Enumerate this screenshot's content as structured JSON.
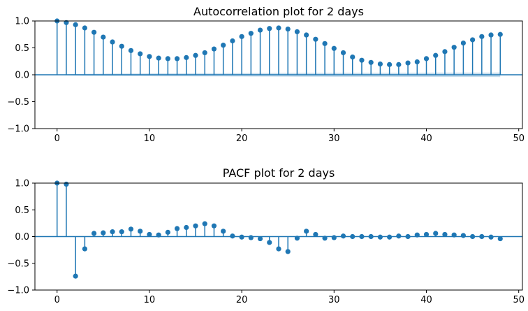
{
  "chart_data": [
    {
      "type": "stem",
      "title": "Autocorrelation plot for 2 days",
      "xlabel": "",
      "ylabel": "",
      "xlim": [
        -2.4,
        50.4
      ],
      "ylim": [
        -1.0,
        1.0
      ],
      "xticks": [
        0,
        10,
        20,
        30,
        40,
        50
      ],
      "yticks": [
        -1.0,
        -0.5,
        0.0,
        0.5,
        1.0
      ],
      "xtick_labels": [
        "0",
        "10",
        "20",
        "30",
        "40",
        "50"
      ],
      "ytick_labels": [
        "−1.0",
        "−0.5",
        "0.0",
        "0.5",
        "1.0"
      ],
      "grid": false,
      "color": "#1f77b4",
      "confidence_band": {
        "color": "#1f77b4",
        "lower": [
          0.0,
          -0.01,
          -0.015,
          -0.018,
          -0.02,
          -0.021,
          -0.022,
          -0.023,
          -0.024,
          -0.025,
          -0.026,
          -0.027,
          -0.027,
          -0.028,
          -0.028,
          -0.029,
          -0.029,
          -0.03,
          -0.03,
          -0.031,
          -0.031,
          -0.032,
          -0.032,
          -0.033,
          -0.034,
          -0.034,
          -0.035,
          -0.035,
          -0.036,
          -0.036,
          -0.037,
          -0.037,
          -0.037,
          -0.038,
          -0.038,
          -0.038,
          -0.038,
          -0.039,
          -0.039,
          -0.039,
          -0.039,
          -0.04,
          -0.04,
          -0.04,
          -0.04,
          -0.041,
          -0.041,
          -0.041,
          -0.042
        ],
        "upper": [
          0.0,
          0.01,
          0.015,
          0.018,
          0.02,
          0.021,
          0.022,
          0.023,
          0.024,
          0.025,
          0.026,
          0.027,
          0.027,
          0.028,
          0.028,
          0.029,
          0.029,
          0.03,
          0.03,
          0.031,
          0.031,
          0.032,
          0.032,
          0.033,
          0.034,
          0.034,
          0.035,
          0.035,
          0.036,
          0.036,
          0.037,
          0.037,
          0.037,
          0.038,
          0.038,
          0.038,
          0.038,
          0.039,
          0.039,
          0.039,
          0.039,
          0.04,
          0.04,
          0.04,
          0.04,
          0.041,
          0.041,
          0.041,
          0.042
        ]
      },
      "x": [
        0,
        1,
        2,
        3,
        4,
        5,
        6,
        7,
        8,
        9,
        10,
        11,
        12,
        13,
        14,
        15,
        16,
        17,
        18,
        19,
        20,
        21,
        22,
        23,
        24,
        25,
        26,
        27,
        28,
        29,
        30,
        31,
        32,
        33,
        34,
        35,
        36,
        37,
        38,
        39,
        40,
        41,
        42,
        43,
        44,
        45,
        46,
        47,
        48
      ],
      "values": [
        1.0,
        0.97,
        0.93,
        0.87,
        0.79,
        0.7,
        0.61,
        0.53,
        0.45,
        0.39,
        0.34,
        0.31,
        0.3,
        0.3,
        0.32,
        0.36,
        0.41,
        0.48,
        0.55,
        0.63,
        0.71,
        0.77,
        0.83,
        0.86,
        0.87,
        0.85,
        0.8,
        0.74,
        0.66,
        0.58,
        0.49,
        0.41,
        0.33,
        0.27,
        0.23,
        0.2,
        0.19,
        0.19,
        0.22,
        0.24,
        0.3,
        0.36,
        0.43,
        0.51,
        0.59,
        0.65,
        0.71,
        0.74,
        0.75
      ]
    },
    {
      "type": "stem",
      "title": "PACF plot for 2 days",
      "xlabel": "",
      "ylabel": "",
      "xlim": [
        -2.4,
        50.4
      ],
      "ylim": [
        -1.0,
        1.0
      ],
      "xticks": [
        0,
        10,
        20,
        30,
        40,
        50
      ],
      "yticks": [
        -1.0,
        -0.5,
        0.0,
        0.5,
        1.0
      ],
      "xtick_labels": [
        "0",
        "10",
        "20",
        "30",
        "40",
        "50"
      ],
      "ytick_labels": [
        "−1.0",
        "−0.5",
        "0.0",
        "0.5",
        "1.0"
      ],
      "grid": false,
      "color": "#1f77b4",
      "x": [
        0,
        1,
        2,
        3,
        4,
        5,
        6,
        7,
        8,
        9,
        10,
        11,
        12,
        13,
        14,
        15,
        16,
        17,
        18,
        19,
        20,
        21,
        22,
        23,
        24,
        25,
        26,
        27,
        28,
        29,
        30,
        31,
        32,
        33,
        34,
        35,
        36,
        37,
        38,
        39,
        40,
        41,
        42,
        43,
        44,
        45,
        46,
        47,
        48
      ],
      "values": [
        1.0,
        0.98,
        -0.74,
        -0.23,
        0.06,
        0.07,
        0.09,
        0.09,
        0.14,
        0.1,
        0.04,
        0.03,
        0.08,
        0.15,
        0.17,
        0.2,
        0.24,
        0.2,
        0.1,
        0.01,
        -0.01,
        -0.02,
        -0.04,
        -0.11,
        -0.23,
        -0.28,
        -0.03,
        0.1,
        0.04,
        -0.03,
        -0.02,
        0.01,
        0.0,
        0.0,
        0.0,
        -0.01,
        -0.01,
        0.01,
        0.0,
        0.03,
        0.04,
        0.06,
        0.04,
        0.03,
        0.02,
        0.0,
        0.0,
        -0.01,
        -0.04
      ]
    }
  ]
}
